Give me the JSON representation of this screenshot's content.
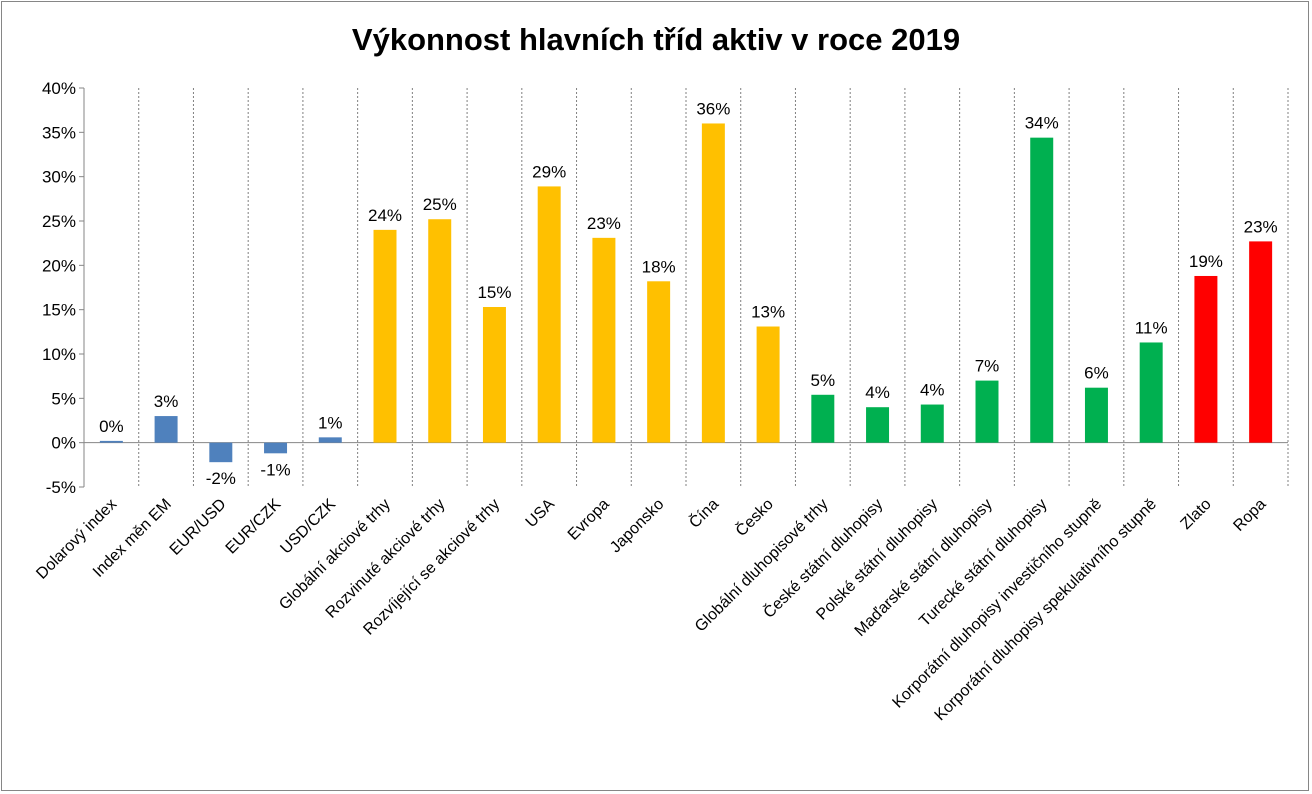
{
  "chart_data": {
    "type": "bar",
    "title": "Výkonnost hlavních tříd aktiv v roce 2019",
    "xlabel": "",
    "ylabel": "",
    "ylim": [
      -5,
      40
    ],
    "yticks": [
      -5,
      0,
      5,
      10,
      15,
      20,
      25,
      30,
      35,
      40
    ],
    "ytick_format": "percent",
    "grid": "vertical dashed between categories",
    "legend": "none",
    "categories": [
      "Dolarový index",
      "Index měn EM",
      "EUR/USD",
      "EUR/CZK",
      "USD/CZK",
      "Globální akciové trhy",
      "Rozvinuté akciové trhy",
      "Rozvíjející se akciové trhy",
      "USA",
      "Evropa",
      "Japonsko",
      "Čína",
      "Česko",
      "Globální dluhopisové trhy",
      "České státní dluhopisy",
      "Polské státní dluhopisy",
      "Maďarské státní dluhopisy",
      "Turecké státní dluhopisy",
      "Korporátní dluhopisy investičního stupně",
      "Korporátní dluhopisy spekulativního stupně",
      "Zlato",
      "Ropa"
    ],
    "values": [
      0.2,
      3.0,
      -2.2,
      -1.2,
      0.6,
      24.0,
      25.2,
      15.3,
      28.9,
      23.1,
      18.2,
      36.0,
      13.1,
      5.4,
      4.0,
      4.3,
      7.0,
      34.4,
      6.2,
      11.3,
      18.8,
      22.7
    ],
    "data_labels": [
      "0%",
      "3%",
      "-2%",
      "-1%",
      "1%",
      "24%",
      "25%",
      "15%",
      "29%",
      "23%",
      "18%",
      "36%",
      "13%",
      "5%",
      "4%",
      "4%",
      "7%",
      "34%",
      "6%",
      "11%",
      "19%",
      "23%"
    ],
    "colors": [
      "#4F81BD",
      "#4F81BD",
      "#4F81BD",
      "#4F81BD",
      "#4F81BD",
      "#FFC000",
      "#FFC000",
      "#FFC000",
      "#FFC000",
      "#FFC000",
      "#FFC000",
      "#FFC000",
      "#FFC000",
      "#00B050",
      "#00B050",
      "#00B050",
      "#00B050",
      "#00B050",
      "#00B050",
      "#00B050",
      "#FF0000",
      "#FF0000"
    ]
  }
}
